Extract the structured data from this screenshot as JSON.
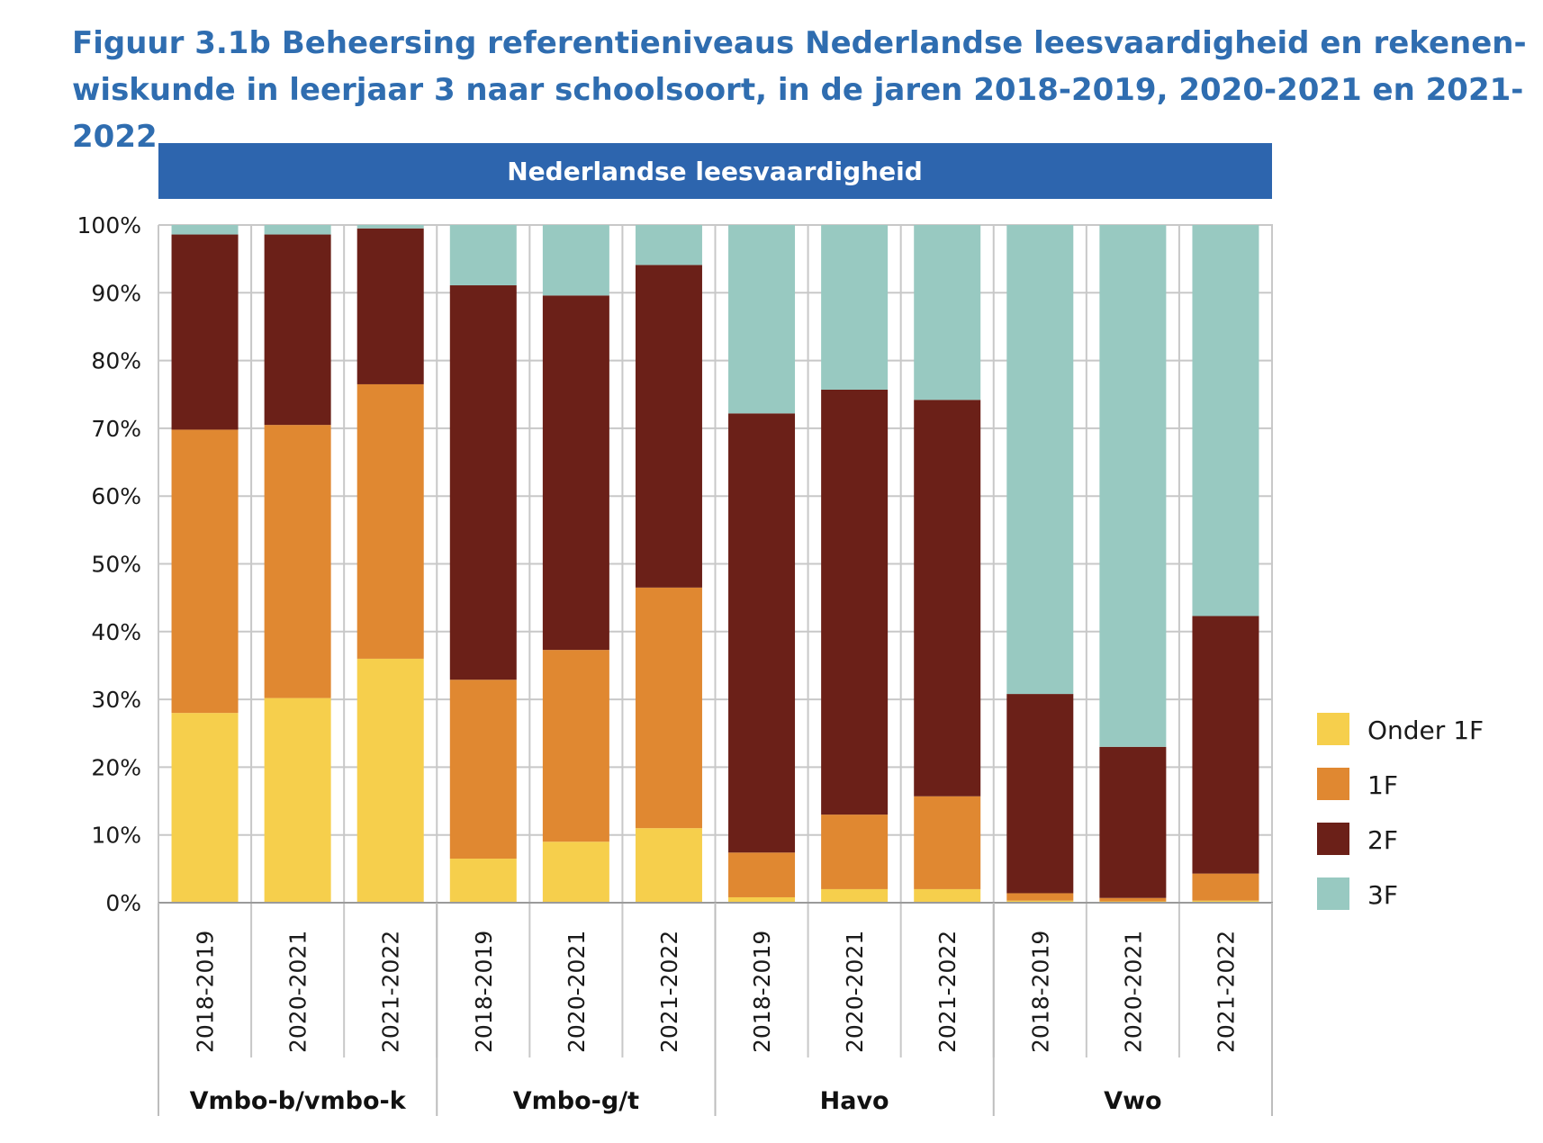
{
  "figure": {
    "label": "Figuur 3.1b",
    "title": "Beheersing referentieniveaus Nederlandse leesvaardigheid en rekenen-wiskunde in leerjaar 3 naar schoolsoort, in de jaren 2018-2019, 2020-2021 en 2021-2022"
  },
  "chart_data": {
    "type": "bar",
    "stacked": true,
    "title": "Nederlandse leesvaardigheid",
    "ylim": [
      0,
      100
    ],
    "y_ticks": [
      "0%",
      "10%",
      "20%",
      "30%",
      "40%",
      "50%",
      "60%",
      "70%",
      "80%",
      "90%",
      "100%"
    ],
    "grid": true,
    "legend_position": "right",
    "groups": [
      {
        "name": "Vmbo-b/vmbo-k",
        "categories": [
          "2018-2019",
          "2020-2021",
          "2021-2022"
        ]
      },
      {
        "name": "Vmbo-g/t",
        "categories": [
          "2018-2019",
          "2020-2021",
          "2021-2022"
        ]
      },
      {
        "name": "Havo",
        "categories": [
          "2018-2019",
          "2020-2021",
          "2021-2022"
        ]
      },
      {
        "name": "Vwo",
        "categories": [
          "2018-2019",
          "2020-2021",
          "2021-2022"
        ]
      }
    ],
    "categories": [
      "2018-2019",
      "2020-2021",
      "2021-2022",
      "2018-2019",
      "2020-2021",
      "2021-2022",
      "2018-2019",
      "2020-2021",
      "2021-2022",
      "2018-2019",
      "2020-2021",
      "2021-2022"
    ],
    "series": [
      {
        "name": "Onder 1F",
        "color": "#f6cf4c",
        "values": [
          28,
          30.2,
          36,
          6.5,
          9,
          11,
          0.8,
          2,
          2,
          0.3,
          0.2,
          0.3
        ]
      },
      {
        "name": "1F",
        "color": "#e08831",
        "values": [
          41.8,
          40.3,
          40.5,
          26.4,
          28.3,
          35.5,
          6.6,
          11,
          13.7,
          1.1,
          0.5,
          4
        ]
      },
      {
        "name": "2F",
        "color": "#6b2018",
        "values": [
          28.8,
          28.1,
          23,
          58.2,
          52.3,
          47.6,
          64.8,
          62.7,
          58.5,
          29.4,
          22.3,
          38
        ]
      },
      {
        "name": "3F",
        "color": "#98c9c1",
        "values": [
          1.4,
          1.4,
          0.5,
          8.9,
          10.4,
          5.9,
          27.8,
          24.3,
          25.8,
          69.2,
          77,
          57.7
        ]
      }
    ]
  },
  "colors": {
    "title_text": "#2f6db0",
    "panel_header": "#2d65ae",
    "grid": "#c8c8c8"
  }
}
